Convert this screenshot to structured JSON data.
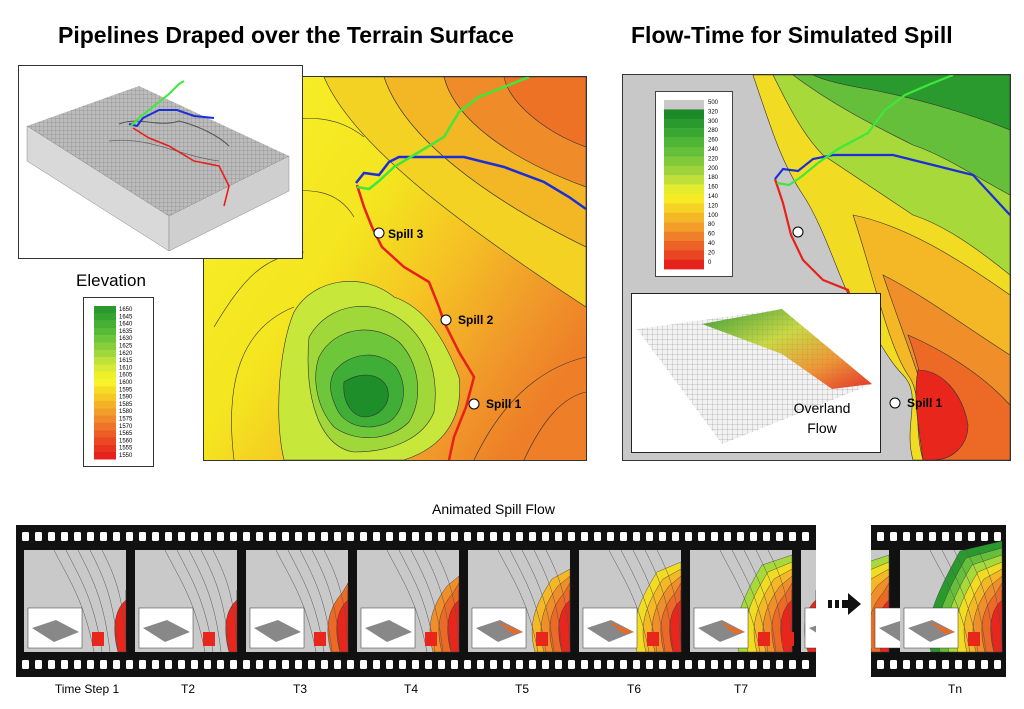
{
  "left_panel": {
    "title": "Pipelines Draped over the Terrain Surface",
    "legend_title": "Elevation",
    "legend_values": [
      "1650",
      "1645",
      "1640",
      "1635",
      "1630",
      "1625",
      "1620",
      "1615",
      "1610",
      "1605",
      "1600",
      "1595",
      "1590",
      "1585",
      "1580",
      "1575",
      "1570",
      "1565",
      "1560",
      "1555",
      "1550"
    ],
    "spills": [
      "Spill 3",
      "Spill 2",
      "Spill 1"
    ]
  },
  "right_panel": {
    "title": "Flow-Time for Simulated Spill",
    "legend_values": [
      "500",
      "320",
      "300",
      "280",
      "260",
      "240",
      "220",
      "200",
      "180",
      "160",
      "140",
      "120",
      "100",
      "80",
      "60",
      "40",
      "20",
      "0"
    ],
    "inset_label_line1": "Overland",
    "inset_label_line2": "Flow",
    "spill_label": "Spill 1"
  },
  "animation": {
    "title": "Animated Spill Flow",
    "steps": [
      "Time Step 1",
      "T2",
      "T3",
      "T4",
      "T5",
      "T6",
      "T7"
    ],
    "last_step": "Tn"
  },
  "colors": {
    "pipeline_red": "#e8201a",
    "pipeline_blue": "#1a2fd6",
    "pipeline_green": "#3ee83a",
    "film": "#111111"
  }
}
